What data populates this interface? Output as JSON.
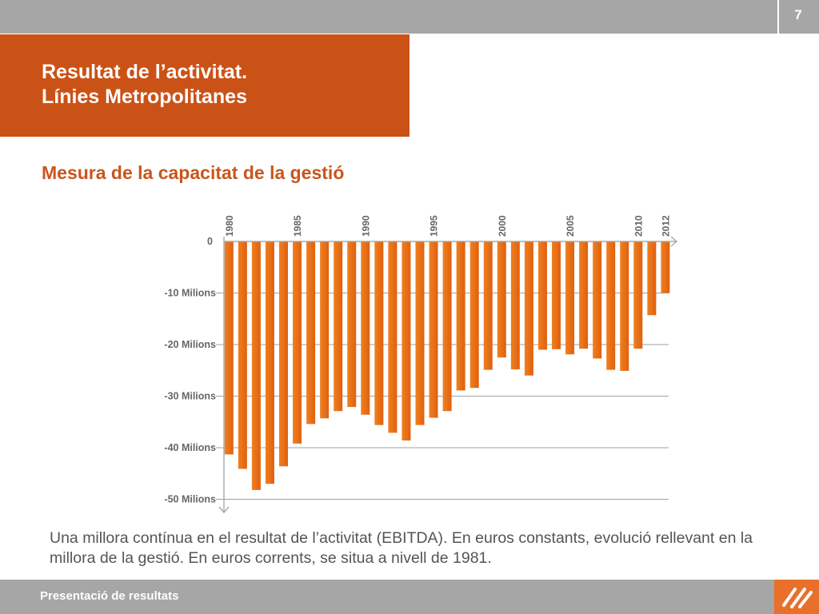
{
  "header": {
    "page_number": "7",
    "title_line1": "Resultat de l’activitat.",
    "title_line2": "Línies Metropolitanes"
  },
  "subtitle": "Mesura de la capacitat de la gestió",
  "description": "Una millora contínua en el resultat de l’activitat (EBITDA). En euros constants, evolució rellevant en la millora de la gestió. En euros corrents, se situa a nivell de 1981.",
  "footer": {
    "text": "Presentació de resultats",
    "logo_icon": "brand-logo-icon"
  },
  "colors": {
    "accent": "#cb5217",
    "bar": "#ed7117",
    "bar_gradient_start": "#f0801f",
    "bar_gradient_end": "#e0600f",
    "grid": "#999999",
    "gray_bar": "#a6a6a6"
  },
  "chart_data": {
    "type": "bar",
    "title": "",
    "xlabel": "",
    "ylabel": "",
    "ylim": [
      -50,
      0
    ],
    "ytick_values": [
      0,
      -10,
      -20,
      -30,
      -40,
      -50
    ],
    "yticks": [
      "0",
      "-10 Milions",
      "-20 Milions",
      "-30 Milions",
      "-40 Milions",
      "-50 Milions"
    ],
    "grid": true,
    "year_labels": [
      "1980",
      "1985",
      "1990",
      "1995",
      "2000",
      "2005",
      "2010",
      "2012"
    ],
    "categories": [
      "1980",
      "1981",
      "1982",
      "1983",
      "1984",
      "1985",
      "1986",
      "1987",
      "1988",
      "1989",
      "1990",
      "1991",
      "1992",
      "1993",
      "1994",
      "1995",
      "1996",
      "1997",
      "1998",
      "1999",
      "2000",
      "2001",
      "2002",
      "2003",
      "2004",
      "2005",
      "2006",
      "2007",
      "2008",
      "2009",
      "2010",
      "2011",
      "2012"
    ],
    "series": [
      {
        "values": [
          -41.3,
          -44.1,
          -48.2,
          -47.0,
          -43.6,
          -39.2,
          -35.4,
          -34.3,
          -32.9,
          -32.1,
          -33.6,
          -35.6,
          -37.1,
          -38.6,
          -35.6,
          -34.2,
          -32.9,
          -28.9,
          -28.4,
          -24.9,
          -22.5,
          -24.8,
          -26.0,
          -21.0,
          -20.9,
          -21.9,
          -20.8,
          -22.7,
          -24.9,
          -25.1,
          -20.8,
          -14.3,
          -10.0
        ]
      }
    ]
  }
}
